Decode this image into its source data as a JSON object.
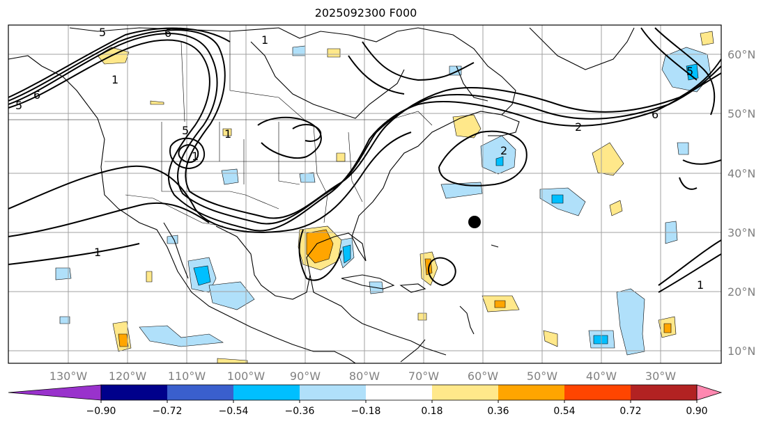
{
  "title": "2025092300 F000",
  "map": {
    "lon_labels": [
      "130°W",
      "120°W",
      "110°W",
      "100°W",
      "90°W",
      "80°W",
      "70°W",
      "60°W",
      "50°W",
      "40°W",
      "30°W"
    ],
    "lat_labels": [
      "60°N",
      "50°N",
      "40°N",
      "30°N",
      "20°N",
      "10°N"
    ],
    "contour_labels": [
      "5",
      "6",
      "6",
      "1",
      "5",
      "5",
      "1",
      "1",
      "1",
      "2",
      "2",
      "6",
      "1",
      "5",
      "1"
    ],
    "colors": {
      "land_line": "#000000",
      "grid": "#a0a0a0",
      "contour": "#000000"
    }
  },
  "colorbar": {
    "ticks": [
      "−0.90",
      "−0.72",
      "−0.54",
      "−0.36",
      "−0.18",
      "0.18",
      "0.36",
      "0.54",
      "0.72",
      "0.90"
    ],
    "colors": [
      "#9932cc",
      "#00008b",
      "#3a5fcd",
      "#00bfff",
      "#b0e0fa",
      "#ffffff",
      "#ffe88a",
      "#ffa500",
      "#ff4500",
      "#b22222",
      "#ff88b0"
    ]
  }
}
